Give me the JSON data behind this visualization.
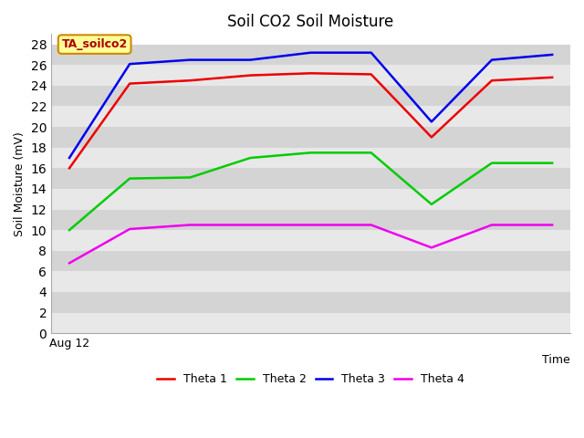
{
  "title": "Soil CO2 Soil Moisture",
  "xlabel": "Time",
  "ylabel": "Soil Moisture (mV)",
  "annotation": "TA_soilco2",
  "ylim": [
    0,
    29
  ],
  "yticks": [
    0,
    2,
    4,
    6,
    8,
    10,
    12,
    14,
    16,
    18,
    20,
    22,
    24,
    26,
    28
  ],
  "x_values": [
    0,
    1,
    2,
    3,
    4,
    5,
    6,
    7,
    8
  ],
  "theta1": [
    16.0,
    24.2,
    24.5,
    25.0,
    25.2,
    25.1,
    19.0,
    24.5,
    24.8
  ],
  "theta2": [
    10.0,
    15.0,
    15.1,
    17.0,
    17.5,
    17.5,
    12.5,
    16.5,
    16.5
  ],
  "theta3": [
    17.0,
    26.1,
    26.5,
    26.5,
    27.2,
    27.2,
    20.5,
    26.5,
    27.0
  ],
  "theta4": [
    6.8,
    10.1,
    10.5,
    10.5,
    10.5,
    10.5,
    8.3,
    10.5,
    10.5
  ],
  "color_theta1": "#ee0000",
  "color_theta2": "#00cc00",
  "color_theta3": "#0000ee",
  "color_theta4": "#ee00ee",
  "fig_bg": "#ffffff",
  "plot_bg_light": "#e8e8e8",
  "plot_bg_dark": "#d8d8d8",
  "x_label_start": "Aug 12",
  "annotation_bg": "#ffff99",
  "annotation_border": "#cc8800",
  "annotation_text_color": "#aa0000",
  "linewidth": 1.8,
  "band_colors": [
    "#e8e8e8",
    "#d4d4d4"
  ]
}
